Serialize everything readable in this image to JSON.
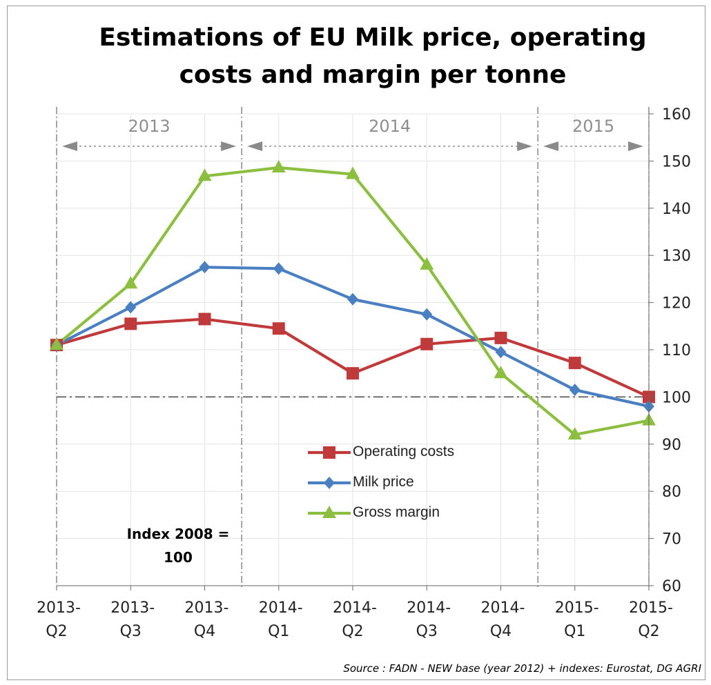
{
  "page": {
    "title": "Estimations of EU Milk price, operating\ncosts and margin per tonne",
    "source": "Source : FADN - NEW base (year 2012) + indexes: Eurostat, DG AGRI",
    "index_note": "Index 2008 =\n100"
  },
  "chart_data": {
    "type": "line",
    "title": "Estimations of EU Milk price, operating costs and margin per tonne",
    "xlabel": "",
    "ylabel": "",
    "categories": [
      "2013-\nQ2",
      "2013-\nQ3",
      "2013-\nQ4",
      "2014-\nQ1",
      "2014-\nQ2",
      "2014-\nQ3",
      "2014-\nQ4",
      "2015-\nQ1",
      "2015-\nQ2"
    ],
    "ylim": [
      60,
      160
    ],
    "yticks": [
      60,
      70,
      80,
      90,
      100,
      110,
      120,
      130,
      140,
      150,
      160
    ],
    "y_axis_side": "right",
    "grid": true,
    "reference_line": 100,
    "year_bands": [
      {
        "label": "2013",
        "from": 0,
        "to": 2.5
      },
      {
        "label": "2014",
        "from": 2.5,
        "to": 6.5
      },
      {
        "label": "2015",
        "from": 6.5,
        "to": 8
      }
    ],
    "legend_position": "center",
    "series": [
      {
        "name": "Operating costs",
        "color": "#c0393b",
        "marker": "square",
        "values": [
          111,
          115.5,
          116.5,
          114.5,
          105,
          111.2,
          112.5,
          107.2,
          100
        ]
      },
      {
        "name": "Milk price",
        "color": "#4a7fc1",
        "marker": "diamond",
        "values": [
          111,
          119,
          127.5,
          127.2,
          120.7,
          117.5,
          109.5,
          101.5,
          98
        ]
      },
      {
        "name": "Gross margin",
        "color": "#8cbf3f",
        "marker": "triangle",
        "values": [
          111,
          124,
          146.8,
          148.6,
          147.2,
          128,
          105,
          92,
          95
        ]
      }
    ]
  }
}
